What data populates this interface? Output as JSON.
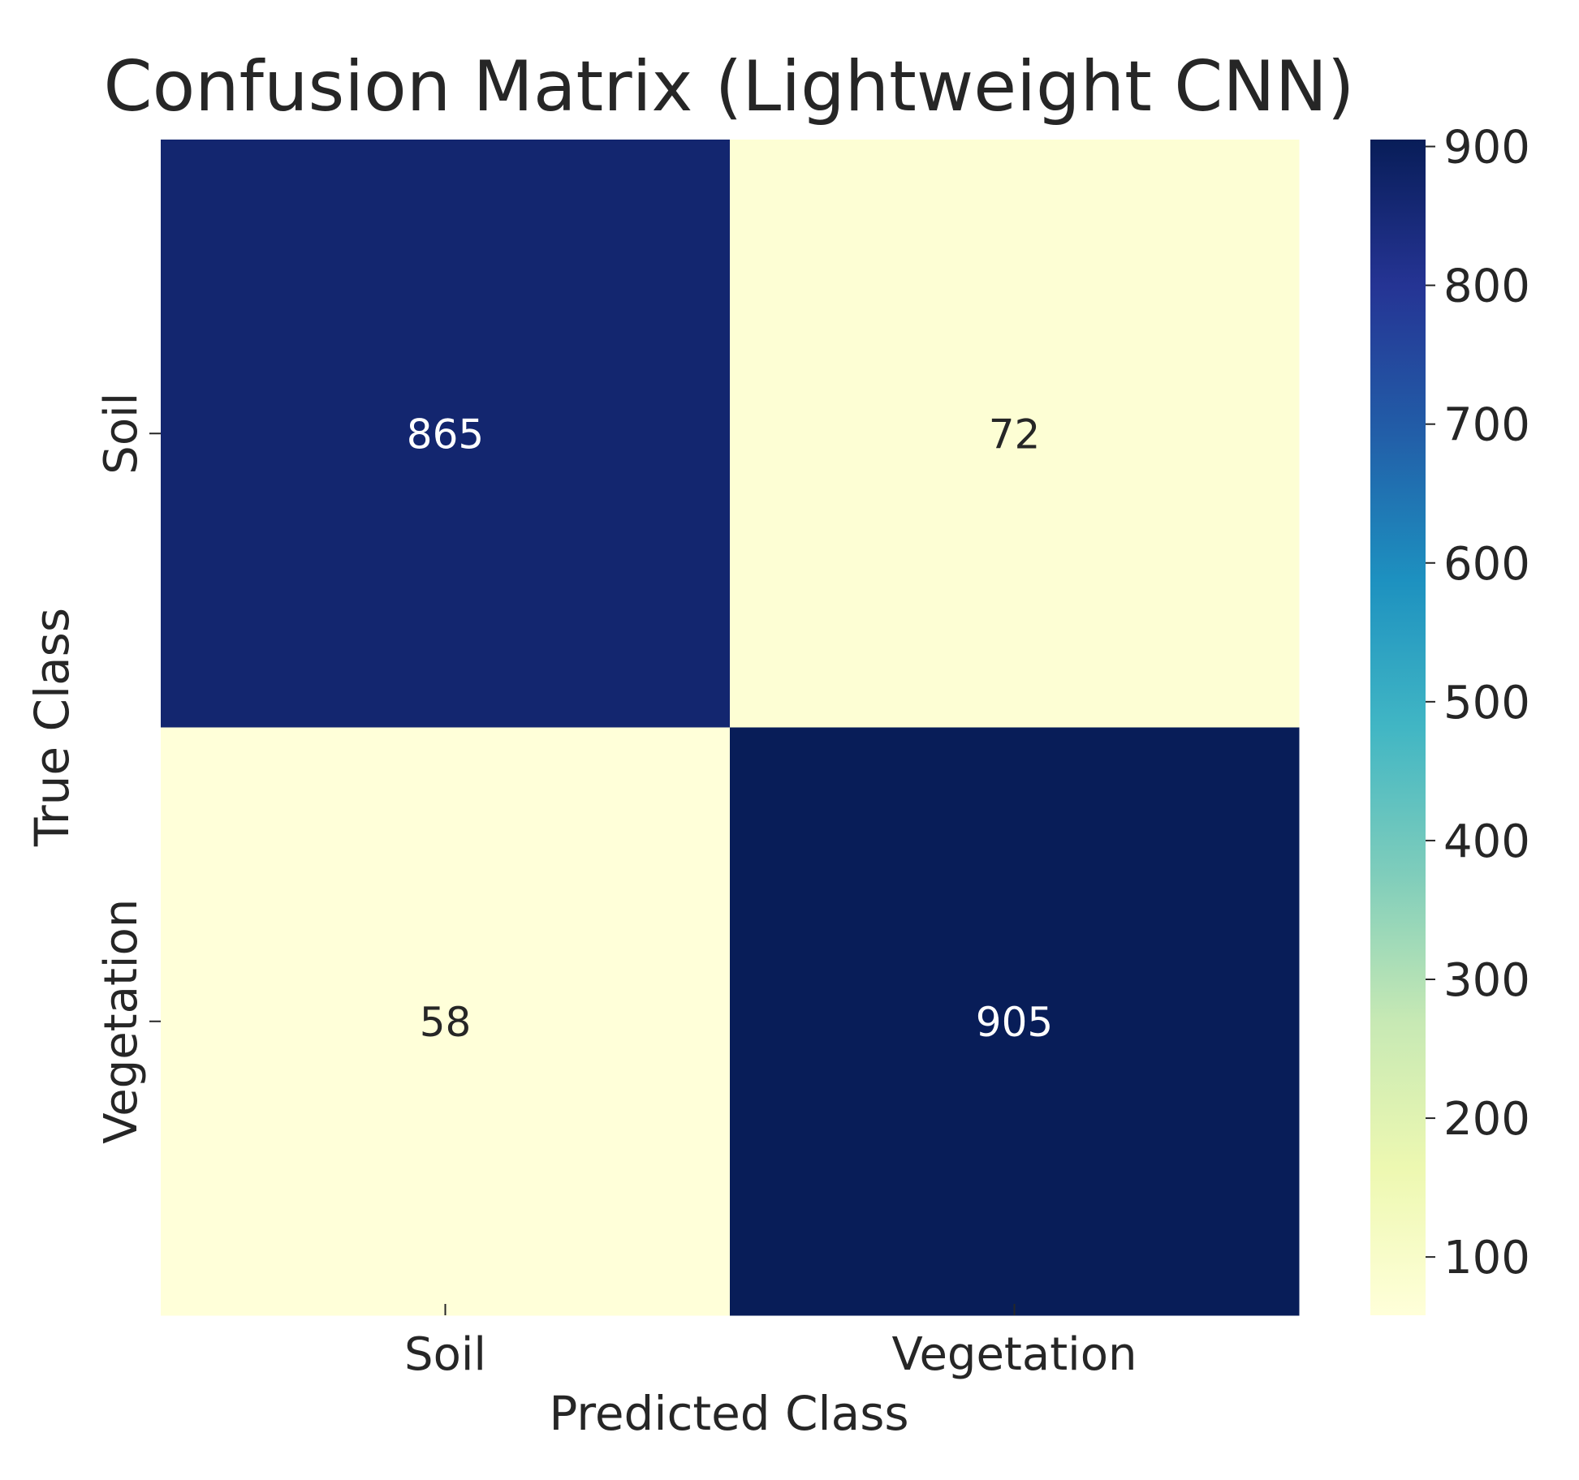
{
  "chart_data": {
    "type": "heatmap",
    "title": "Confusion Matrix (Lightweight CNN)",
    "xlabel": "Predicted Class",
    "ylabel": "True Class",
    "x_categories": [
      "Soil",
      "Vegetation"
    ],
    "y_categories": [
      "Soil",
      "Vegetation"
    ],
    "values": [
      [
        865,
        72
      ],
      [
        58,
        905
      ]
    ],
    "colorscale": "YlGnBu",
    "colorbar": {
      "range": [
        58,
        905
      ],
      "ticks": [
        100,
        200,
        300,
        400,
        500,
        600,
        700,
        800,
        900
      ]
    },
    "grid": false,
    "legend": "colorbar-right"
  }
}
